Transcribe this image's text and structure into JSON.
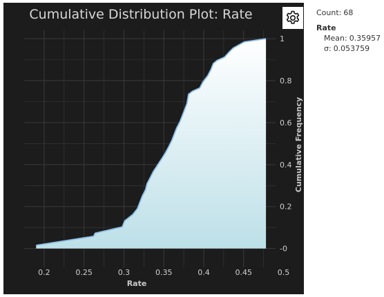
{
  "chart_data": {
    "type": "area",
    "title": "Cumulative Distribution Plot: Rate",
    "xlabel": "Rate",
    "ylabel": "Cumulative Frequency",
    "xlim": [
      0.175,
      0.49
    ],
    "ylim": [
      -0.09,
      1.04
    ],
    "x_ticks": [
      0.2,
      0.25,
      0.3,
      0.35,
      0.4,
      0.45,
      0.5
    ],
    "x_tick_labels": [
      "0.2",
      "0.25",
      "0.3",
      "0.35",
      "0.4",
      "0.45",
      "0.5"
    ],
    "y_ticks": [
      0,
      0.2,
      0.4,
      0.6,
      0.8,
      1
    ],
    "y_tick_labels": [
      "-0",
      "0.2",
      "0.4",
      "0.6",
      "0.8",
      "1"
    ],
    "y_axis_side": "right",
    "grid": true,
    "series": [
      {
        "values_x": [
          0.19,
          0.262,
          0.264,
          0.298,
          0.301,
          0.311,
          0.317,
          0.32,
          0.323,
          0.327,
          0.329,
          0.333,
          0.337,
          0.342,
          0.347,
          0.352,
          0.356,
          0.36,
          0.363,
          0.366,
          0.37,
          0.373,
          0.376,
          0.379,
          0.381,
          0.386,
          0.395,
          0.399,
          0.405,
          0.409,
          0.412,
          0.417,
          0.426,
          0.433,
          0.437,
          0.451,
          0.478
        ],
        "values_y": [
          0.015,
          0.058,
          0.073,
          0.103,
          0.132,
          0.162,
          0.191,
          0.221,
          0.25,
          0.279,
          0.309,
          0.338,
          0.368,
          0.397,
          0.426,
          0.456,
          0.485,
          0.515,
          0.544,
          0.574,
          0.603,
          0.632,
          0.662,
          0.691,
          0.735,
          0.75,
          0.765,
          0.794,
          0.824,
          0.853,
          0.882,
          0.897,
          0.912,
          0.941,
          0.956,
          0.985,
          1.0
        ]
      }
    ],
    "fill_top_color": "#ffffff",
    "fill_bottom_color": "#bde0e8",
    "line_color": "#8fc0e8",
    "background_color": "#1c1c1c",
    "grid_color": "#3a3a3a"
  },
  "settings": {
    "icon": "gear-icon"
  },
  "stats": {
    "count_label": "Count:",
    "count_value": "68",
    "variable": "Rate",
    "mean_label": "Mean:",
    "mean_value": "0.35957",
    "sigma_label": "σ:",
    "sigma_value": "0.053759"
  }
}
